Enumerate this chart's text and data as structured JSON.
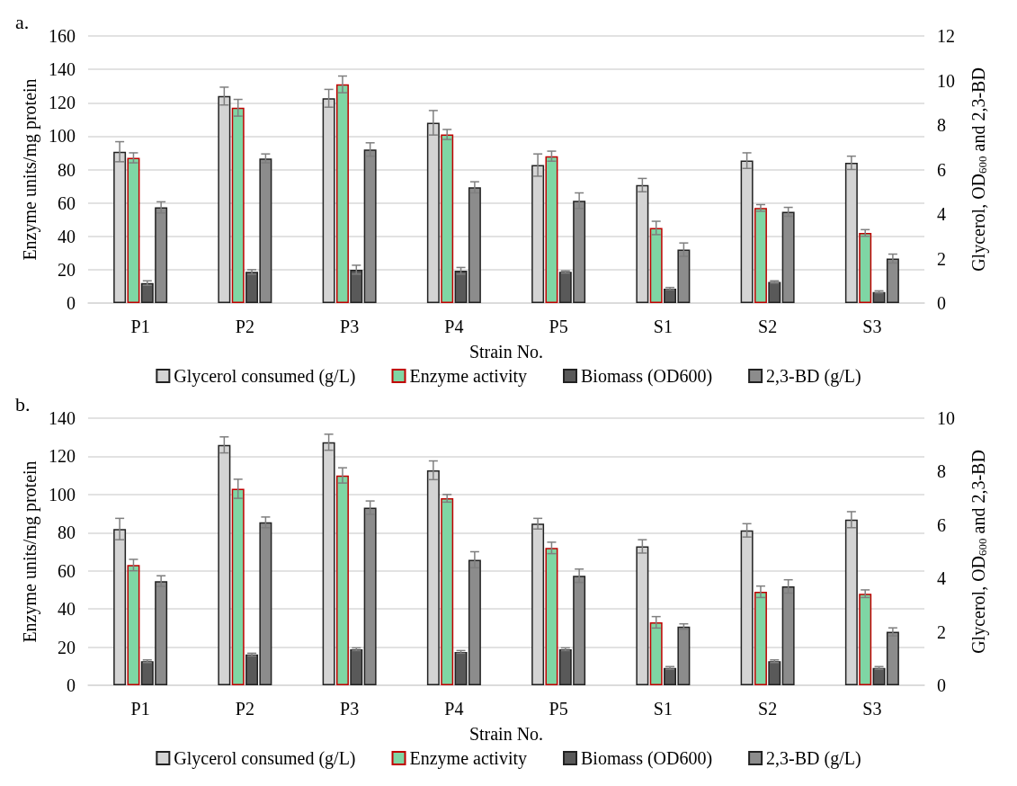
{
  "chart_data": [
    {
      "type": "bar",
      "title": "a.",
      "xlabel": "Strain No.",
      "ylabel": "Enzyme units/mg protein",
      "y2label": "Glycerol, OD$_{600}$ and 2,3-BD",
      "categories": [
        "P1",
        "P2",
        "P3",
        "P4",
        "P5",
        "S1",
        "S2",
        "S3"
      ],
      "ylim": [
        0,
        160
      ],
      "yticks": [
        0,
        20,
        40,
        60,
        80,
        100,
        120,
        140,
        160
      ],
      "y2lim": [
        0,
        12
      ],
      "y2ticks": [
        0,
        2,
        4,
        6,
        8,
        10,
        12
      ],
      "grid": "y",
      "legend": "bottom",
      "series": [
        {
          "name": "Glycerol consumed (g/L)",
          "color": "#d4d4d4",
          "axis": "y2",
          "values": [
            6.8,
            9.3,
            9.2,
            8.1,
            6.2,
            5.3,
            6.4,
            6.3
          ],
          "errors": [
            0.45,
            0.4,
            0.4,
            0.55,
            0.5,
            0.3,
            0.35,
            0.3
          ]
        },
        {
          "name": "Enzyme activity",
          "color": "#7fd6a4",
          "values": [
            87,
            117,
            131,
            101,
            88,
            45,
            57,
            42
          ],
          "errors": [
            3,
            5,
            5,
            3,
            3,
            4,
            2,
            2
          ]
        },
        {
          "name": "Biomass (OD600)",
          "color": "#595959",
          "axis": "y2",
          "values": [
            0.9,
            1.4,
            1.5,
            1.45,
            1.4,
            0.65,
            0.95,
            0.5
          ],
          "errors": [
            0.1,
            0.1,
            0.2,
            0.15,
            0.05,
            0.05,
            0.05,
            0.05
          ]
        },
        {
          "name": "2,3-BD (g/L)",
          "color": "#8c8c8c",
          "axis": "y2",
          "values": [
            4.3,
            6.5,
            6.9,
            5.2,
            4.6,
            2.4,
            4.1,
            2.0
          ],
          "errors": [
            0.25,
            0.2,
            0.3,
            0.25,
            0.35,
            0.3,
            0.2,
            0.2
          ]
        }
      ]
    },
    {
      "type": "bar",
      "title": "b.",
      "xlabel": "Strain No.",
      "ylabel": "Enzyme units/mg protein",
      "y2label": "Glycerol, OD$_{600}$ and 2,3-BD",
      "categories": [
        "P1",
        "P2",
        "P3",
        "P4",
        "P5",
        "S1",
        "S2",
        "S3"
      ],
      "ylim": [
        0,
        140
      ],
      "yticks": [
        0,
        20,
        40,
        60,
        80,
        100,
        120,
        140
      ],
      "y2lim": [
        0,
        10
      ],
      "y2ticks": [
        0,
        2,
        4,
        6,
        8,
        10
      ],
      "grid": "y",
      "legend": "bottom",
      "series": [
        {
          "name": "Glycerol consumed (g/L)",
          "color": "#d4d4d4",
          "axis": "y2",
          "values": [
            5.85,
            9.0,
            9.1,
            8.05,
            6.05,
            5.2,
            5.8,
            6.2
          ],
          "errors": [
            0.4,
            0.3,
            0.3,
            0.35,
            0.2,
            0.25,
            0.25,
            0.3
          ]
        },
        {
          "name": "Enzyme activity",
          "color": "#7fd6a4",
          "values": [
            63,
            103,
            110,
            98,
            72,
            33,
            49,
            48
          ],
          "errors": [
            3,
            5,
            4,
            2,
            3,
            3,
            3,
            2
          ]
        },
        {
          "name": "Biomass (OD600)",
          "color": "#595959",
          "axis": "y2",
          "values": [
            0.9,
            1.15,
            1.35,
            1.25,
            1.35,
            0.65,
            0.9,
            0.65
          ],
          "errors": [
            0.05,
            0.05,
            0.05,
            0.05,
            0.05,
            0.05,
            0.05,
            0.05
          ]
        },
        {
          "name": "2,3-BD (g/L)",
          "color": "#8c8c8c",
          "axis": "y2",
          "values": [
            3.9,
            6.1,
            6.65,
            4.7,
            4.1,
            2.2,
            3.7,
            2.0
          ],
          "errors": [
            0.2,
            0.2,
            0.25,
            0.3,
            0.25,
            0.1,
            0.25,
            0.15
          ]
        }
      ]
    }
  ]
}
